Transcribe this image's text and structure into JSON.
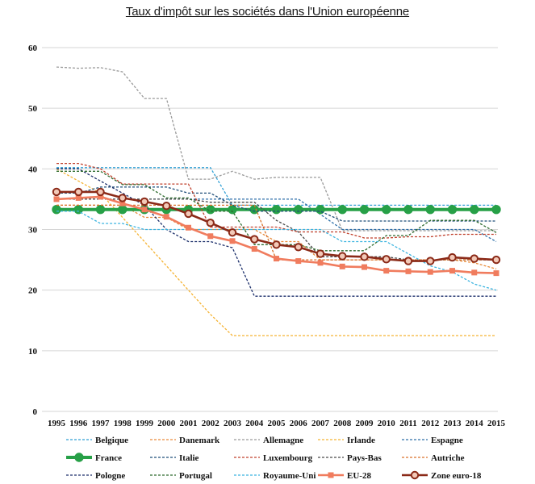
{
  "chart_data": {
    "type": "line",
    "title": "Taux d'impôt sur les sociétés dans l'Union européenne",
    "xlabel": "",
    "ylabel": "",
    "ylim": [
      0,
      60
    ],
    "yticks": [
      "0",
      "10",
      "20",
      "30",
      "40",
      "50",
      "60"
    ],
    "categories": [
      "1995",
      "1996",
      "1997",
      "1998",
      "1999",
      "2000",
      "2001",
      "2002",
      "2003",
      "2004",
      "2005",
      "2006",
      "2007",
      "2008",
      "2009",
      "2010",
      "2011",
      "2012",
      "2013",
      "2014",
      "2015"
    ],
    "grid": true,
    "legend_position": "bottom",
    "series": [
      {
        "name": "Belgique",
        "color": "#2f9fd4",
        "style": "dash",
        "values": [
          40.2,
          40.2,
          40.2,
          40.2,
          40.2,
          40.2,
          40.2,
          40.2,
          34.0,
          34.0,
          34.0,
          34.0,
          34.0,
          34.0,
          34.0,
          34.0,
          34.0,
          34.0,
          34.0,
          34.0,
          34.0
        ]
      },
      {
        "name": "Danemark",
        "color": "#e98b3a",
        "style": "dash",
        "values": [
          34.0,
          34.0,
          34.0,
          34.0,
          32.0,
          32.0,
          30.0,
          30.0,
          30.0,
          30.0,
          28.0,
          28.0,
          25.0,
          25.0,
          25.0,
          25.0,
          25.0,
          25.0,
          25.0,
          24.5,
          23.5
        ]
      },
      {
        "name": "Allemagne",
        "color": "#9a9a9a",
        "style": "dash",
        "values": [
          56.8,
          56.6,
          56.7,
          56.0,
          51.6,
          51.6,
          38.3,
          38.3,
          39.6,
          38.3,
          38.6,
          38.6,
          38.6,
          29.8,
          29.8,
          29.8,
          29.8,
          29.8,
          29.8,
          29.8,
          29.8
        ]
      },
      {
        "name": "Irlande",
        "color": "#f5b333",
        "style": "dash",
        "values": [
          40.0,
          38.0,
          36.0,
          32.0,
          28.0,
          24.0,
          20.0,
          16.0,
          12.5,
          12.5,
          12.5,
          12.5,
          12.5,
          12.5,
          12.5,
          12.5,
          12.5,
          12.5,
          12.5,
          12.5,
          12.5
        ]
      },
      {
        "name": "Espagne",
        "color": "#2e6fa8",
        "style": "dash",
        "values": [
          35.0,
          35.0,
          35.0,
          35.0,
          35.0,
          35.0,
          35.0,
          35.0,
          35.0,
          35.0,
          35.0,
          35.0,
          32.5,
          30.0,
          30.0,
          30.0,
          30.0,
          30.0,
          30.0,
          30.0,
          28.0
        ]
      },
      {
        "name": "France",
        "color": "#27a047",
        "style": "solid-marker",
        "values": [
          33.3,
          33.3,
          33.3,
          33.3,
          33.3,
          33.3,
          33.3,
          33.3,
          33.3,
          33.3,
          33.3,
          33.3,
          33.3,
          33.3,
          33.3,
          33.3,
          33.3,
          33.3,
          33.3,
          33.3,
          33.3
        ]
      },
      {
        "name": "Italie",
        "color": "#1f4e79",
        "style": "dash",
        "values": [
          36.0,
          36.0,
          37.0,
          37.0,
          37.0,
          37.0,
          36.0,
          36.0,
          34.0,
          33.0,
          33.0,
          33.0,
          33.0,
          31.4,
          31.4,
          31.4,
          31.4,
          31.4,
          31.4,
          31.4,
          31.4
        ]
      },
      {
        "name": "Luxembourg",
        "color": "#c0402c",
        "style": "dash",
        "values": [
          40.9,
          40.9,
          40.0,
          37.5,
          37.5,
          37.5,
          37.5,
          30.4,
          30.4,
          30.4,
          30.4,
          29.6,
          29.6,
          29.6,
          28.6,
          28.6,
          28.8,
          28.8,
          29.2,
          29.2,
          29.2
        ]
      },
      {
        "name": "Pays-Bas",
        "color": "#4a4a4a",
        "style": "dash",
        "values": [
          35.0,
          35.0,
          35.0,
          35.0,
          35.0,
          35.0,
          35.0,
          34.5,
          34.5,
          34.5,
          31.5,
          29.6,
          25.5,
          25.5,
          25.5,
          25.5,
          25.0,
          25.0,
          25.0,
          25.0,
          25.0
        ]
      },
      {
        "name": "Autriche",
        "color": "#d9722b",
        "style": "dash",
        "values": [
          34.0,
          34.0,
          34.0,
          34.0,
          34.0,
          34.0,
          34.0,
          34.0,
          34.0,
          34.0,
          25.0,
          25.0,
          25.0,
          25.0,
          25.0,
          25.0,
          25.0,
          25.0,
          25.0,
          25.0,
          25.0
        ]
      },
      {
        "name": "Pologne",
        "color": "#1c2f6b",
        "style": "dash",
        "values": [
          40.0,
          40.0,
          38.0,
          36.0,
          34.0,
          30.0,
          28.0,
          28.0,
          27.0,
          19.0,
          19.0,
          19.0,
          19.0,
          19.0,
          19.0,
          19.0,
          19.0,
          19.0,
          19.0,
          19.0,
          19.0
        ]
      },
      {
        "name": "Portugal",
        "color": "#2d6b2d",
        "style": "dash",
        "values": [
          39.6,
          39.6,
          39.6,
          37.4,
          37.4,
          35.2,
          35.2,
          33.0,
          33.0,
          27.5,
          27.5,
          27.5,
          26.5,
          26.5,
          26.5,
          29.0,
          29.0,
          31.5,
          31.5,
          31.5,
          29.5
        ]
      },
      {
        "name": "Royaume-Uni",
        "color": "#3cb4e0",
        "style": "dash",
        "values": [
          33.0,
          33.0,
          31.0,
          31.0,
          30.0,
          30.0,
          30.0,
          30.0,
          30.0,
          30.0,
          30.0,
          30.0,
          30.0,
          28.0,
          28.0,
          28.0,
          26.0,
          24.0,
          23.0,
          21.0,
          20.0
        ]
      },
      {
        "name": "EU-28",
        "color": "#f07c5e",
        "style": "solid-square",
        "values": [
          35.0,
          35.2,
          35.4,
          34.3,
          33.3,
          32.1,
          30.3,
          28.9,
          28.1,
          26.8,
          25.2,
          24.8,
          24.5,
          23.9,
          23.8,
          23.2,
          23.1,
          23.0,
          23.2,
          22.9,
          22.8
        ]
      },
      {
        "name": "Zone euro-18",
        "color": "#8b2a18",
        "style": "solid-circle",
        "values": [
          36.2,
          36.2,
          36.2,
          35.2,
          34.6,
          33.9,
          32.6,
          31.1,
          29.5,
          28.4,
          27.5,
          27.1,
          26.0,
          25.6,
          25.5,
          25.1,
          24.8,
          24.8,
          25.4,
          25.2,
          25.0
        ]
      }
    ]
  }
}
